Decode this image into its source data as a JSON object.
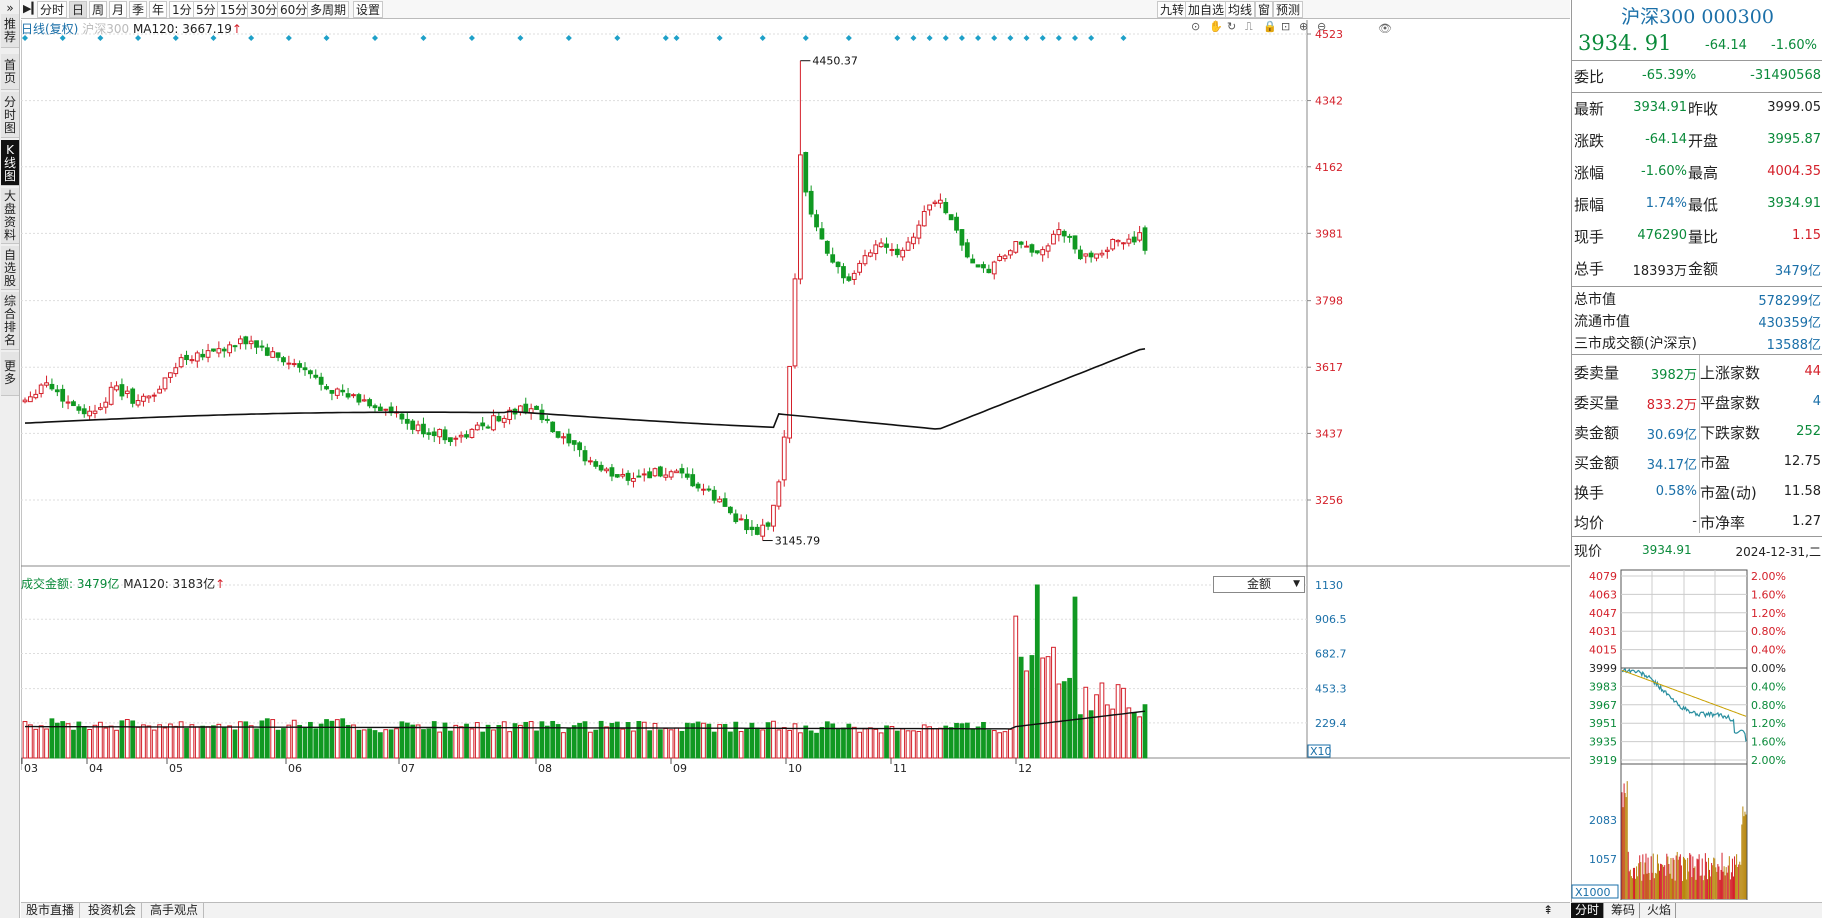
{
  "sidebar": {
    "chevron": "»",
    "items": [
      "推荐",
      "首页",
      "分时图",
      "K线图",
      "大盘资料",
      "自选股",
      "综合排名",
      "更多"
    ]
  },
  "toolbar": {
    "periods": [
      "分时",
      "日",
      "周",
      "月",
      "季",
      "年",
      "1分",
      "5分",
      "15分",
      "30分",
      "60分",
      "多周期",
      "设置"
    ],
    "active_period": "日",
    "right_buttons": [
      "九转",
      "加自选",
      "均线",
      "窗",
      "预测"
    ]
  },
  "kchart": {
    "legend_period": "日线(复权)",
    "legend_name": "沪深300",
    "legend_ma": "MA120: 3667.19",
    "legend_arrow": "↑",
    "marker_high": "4450.37",
    "marker_low": "3145.79",
    "price_axis": [
      "4523",
      "4342",
      "4162",
      "3981",
      "3798",
      "3617",
      "3437",
      "3256"
    ],
    "months": [
      "03",
      "04",
      "05",
      "06",
      "07",
      "08",
      "09",
      "10",
      "11",
      "12"
    ]
  },
  "volchart": {
    "legend_name": "成交金额: 3479亿",
    "legend_ma": "MA120: 3183亿",
    "legend_arrow": "↑",
    "selector": "金额",
    "axis": [
      "1130",
      "906.5",
      "682.7",
      "453.3",
      "229.4"
    ],
    "unit": "X10"
  },
  "quote": {
    "title": "沪深300 000300",
    "price": "3934. 91",
    "change": "-64.14",
    "change_pct": "-1.60%",
    "weibi_label": "委比",
    "weibi_pct": "-65.39%",
    "weibi_val": "-31490568",
    "rows": [
      {
        "l1": "最新",
        "v1": "3934.91",
        "c1": "g",
        "l2": "昨收",
        "v2": "3999.05",
        "c2": "k"
      },
      {
        "l1": "涨跌",
        "v1": "-64.14",
        "c1": "g",
        "l2": "开盘",
        "v2": "3995.87",
        "c2": "g"
      },
      {
        "l1": "涨幅",
        "v1": "-1.60%",
        "c1": "g",
        "l2": "最高",
        "v2": "4004.35",
        "c2": "r"
      },
      {
        "l1": "振幅",
        "v1": "1.74%",
        "c1": "b",
        "l2": "最低",
        "v2": "3934.91",
        "c2": "g"
      },
      {
        "l1": "现手",
        "v1": "476290",
        "c1": "g",
        "l2": "量比",
        "v2": "1.15",
        "c2": "r"
      },
      {
        "l1": "总手",
        "v1": "18393万",
        "c1": "k",
        "l2": "金额",
        "v2": "3479亿",
        "c2": "b"
      }
    ],
    "mkt": [
      {
        "l": "总市值",
        "v": "578299亿"
      },
      {
        "l": "流通市值",
        "v": "430359亿"
      },
      {
        "l": "三市成交额(沪深京)",
        "v": "13588亿"
      }
    ],
    "book": [
      {
        "l1": "委卖量",
        "v1": "3982万",
        "c1": "g",
        "l2": "上涨家数",
        "v2": "44",
        "c2": "r"
      },
      {
        "l1": "委买量",
        "v1": "833.2万",
        "c1": "r",
        "l2": "平盘家数",
        "v2": "4",
        "c2": "b"
      },
      {
        "l1": "卖金额",
        "v1": "30.69亿",
        "c1": "b",
        "l2": "下跌家数",
        "v2": "252",
        "c2": "g"
      },
      {
        "l1": "买金额",
        "v1": "34.17亿",
        "c1": "b",
        "l2": "市盈",
        "v2": "12.75",
        "c2": "k"
      },
      {
        "l1": "换手",
        "v1": "0.58%",
        "c1": "b",
        "l2": "市盈(动)",
        "v2": "11.58",
        "c2": "k"
      },
      {
        "l1": "均价",
        "v1": "-",
        "c1": "k",
        "l2": "市净率",
        "v2": "1.27",
        "c2": "k"
      }
    ],
    "now_label": "现价",
    "now_price": "3934.91",
    "now_date": "2024-12-31,二"
  },
  "intraday": {
    "left_prices": [
      "4079",
      "4063",
      "4047",
      "4031",
      "4015",
      "3999",
      "3983",
      "3967",
      "3951",
      "3935",
      "3919"
    ],
    "right_pcts": [
      "2.00%",
      "1.60%",
      "1.20%",
      "0.80%",
      "0.40%",
      "0.00%",
      "0.40%",
      "0.80%",
      "1.20%",
      "1.60%",
      "2.00%"
    ],
    "vol_axis": [
      "2083",
      "1057"
    ],
    "vol_unit": "X1000"
  },
  "bottom": {
    "tabs": [
      "股市直播",
      "投资机会",
      "高手观点"
    ],
    "right_tabs": [
      "分时",
      "筹码",
      "火焰"
    ]
  },
  "chart_data": {
    "type": "candlestick",
    "title": "",
    "series": [
      {
        "name": "MA120",
        "values_ref": "ma120"
      }
    ],
    "ylim": [
      3145.79,
      4523
    ],
    "x_ticks": [
      "03",
      "04",
      "05",
      "06",
      "07",
      "08",
      "09",
      "10",
      "11",
      "12"
    ],
    "high": 4450.37,
    "low": 3145.79,
    "last_close": 3934.91,
    "last_ma120": 3667.19,
    "volume_unit": "亿",
    "volume_ylim": [
      0,
      1130
    ]
  }
}
